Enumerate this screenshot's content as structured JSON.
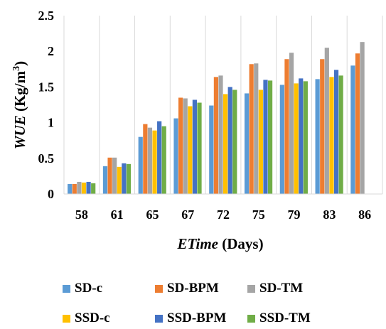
{
  "chart_data": {
    "type": "bar",
    "categories": [
      "58",
      "61",
      "65",
      "67",
      "72",
      "75",
      "79",
      "83",
      "86"
    ],
    "series": [
      {
        "name": "SD-c",
        "color": "#5B9BD5",
        "values": [
          0.14,
          0.39,
          0.8,
          1.06,
          1.24,
          1.41,
          1.53,
          1.61,
          1.8
        ]
      },
      {
        "name": "SD-BPM",
        "color": "#ED7D31",
        "values": [
          0.14,
          0.51,
          0.98,
          1.35,
          1.64,
          1.82,
          1.89,
          1.89,
          1.97
        ]
      },
      {
        "name": "SD-TM",
        "color": "#A5A5A5",
        "values": [
          0.17,
          0.51,
          0.93,
          1.34,
          1.66,
          1.83,
          1.98,
          2.05,
          2.13
        ]
      },
      {
        "name": "SSD-c",
        "color": "#FFC000",
        "values": [
          0.16,
          0.38,
          0.89,
          1.23,
          1.4,
          1.46,
          1.55,
          1.64,
          null
        ]
      },
      {
        "name": "SSD-BPM",
        "color": "#4472C4",
        "values": [
          0.17,
          0.43,
          1.02,
          1.32,
          1.5,
          1.6,
          1.62,
          1.74,
          null
        ]
      },
      {
        "name": "SSD-TM",
        "color": "#70AD47",
        "values": [
          0.15,
          0.42,
          0.95,
          1.28,
          1.46,
          1.59,
          1.58,
          1.66,
          null
        ]
      }
    ],
    "y_ticks": [
      "0",
      "0.5",
      "1",
      "1.5",
      "2",
      "2.5"
    ],
    "ylim": [
      0,
      2.5
    ],
    "xlabel_italic": "ETime",
    "xlabel_rest": " (Days)",
    "ylabel_italic": "WUE",
    "ylabel_rest": " (Kg/m",
    "ylabel_sup": "3",
    "ylabel_close": ")",
    "grid": "vertical",
    "legend_position": "bottom"
  }
}
